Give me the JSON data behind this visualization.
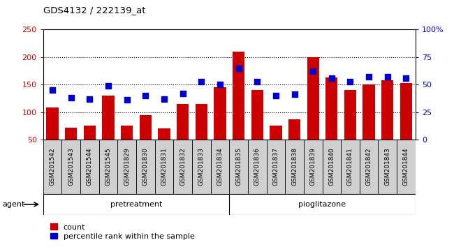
{
  "title": "GDS4132 / 222139_at",
  "samples": [
    "GSM201542",
    "GSM201543",
    "GSM201544",
    "GSM201545",
    "GSM201829",
    "GSM201830",
    "GSM201831",
    "GSM201832",
    "GSM201833",
    "GSM201834",
    "GSM201835",
    "GSM201836",
    "GSM201837",
    "GSM201838",
    "GSM201839",
    "GSM201840",
    "GSM201841",
    "GSM201842",
    "GSM201843",
    "GSM201844"
  ],
  "counts": [
    108,
    71,
    75,
    130,
    75,
    95,
    70,
    115,
    115,
    145,
    210,
    140,
    76,
    87,
    200,
    163,
    140,
    150,
    158,
    153
  ],
  "percentile": [
    45,
    38,
    37,
    49,
    36,
    40,
    37,
    42,
    53,
    50,
    65,
    53,
    40,
    41,
    62,
    56,
    53,
    57,
    57,
    56
  ],
  "pretreatment_count": 10,
  "pioglitazone_count": 10,
  "bar_color": "#cc0000",
  "dot_color": "#0000cc",
  "pretreatment_color": "#aaeebb",
  "pioglitazone_color": "#44dd66",
  "agent_label": "agent",
  "pretreatment_label": "pretreatment",
  "pioglitazone_label": "pioglitazone",
  "legend_count": "count",
  "legend_pct": "percentile rank within the sample",
  "ylim_left": [
    50,
    250
  ],
  "ylim_right": [
    0,
    100
  ],
  "yticks_left": [
    50,
    100,
    150,
    200,
    250
  ],
  "yticks_right": [
    0,
    25,
    50,
    75,
    100
  ],
  "ytick_right_labels": [
    "0",
    "25",
    "50",
    "75",
    "100%"
  ],
  "grid_ticks": [
    100,
    150,
    200
  ]
}
